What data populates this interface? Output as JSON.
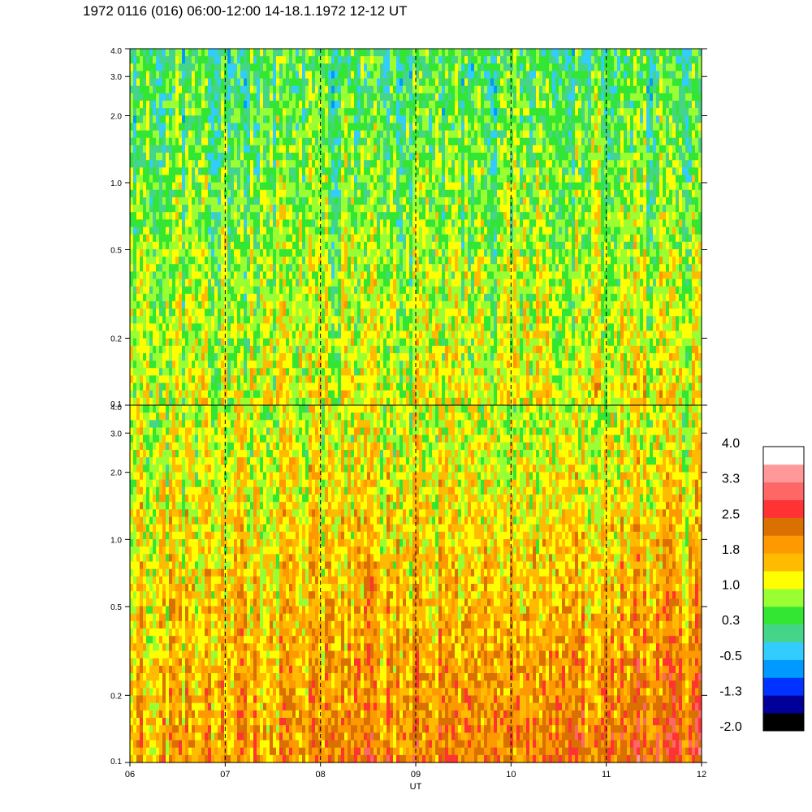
{
  "title": "1972 0116 (016) 06:00-12:00 14-18.1.1972  12-12 UT",
  "chart_data": [
    {
      "type": "heatmap",
      "panel": "upper",
      "x_ticks": [
        "06",
        "07",
        "08",
        "09",
        "10",
        "11",
        "12"
      ],
      "x_range": [
        6,
        12
      ],
      "y_scale": "log",
      "y_range": [
        0.1,
        4.0
      ],
      "y_ticks": [
        "0.1",
        "0.2",
        "0.5",
        "1.0",
        "2.0",
        "3.0",
        "4.0"
      ],
      "hour_markers": [
        7,
        8,
        9,
        10,
        11
      ],
      "dominant_levels": {
        "high_freq": 0.3,
        "low_freq": 1.0
      }
    },
    {
      "type": "heatmap",
      "panel": "lower",
      "x_ticks": [
        "06",
        "07",
        "08",
        "09",
        "10",
        "11",
        "12"
      ],
      "x_range": [
        6,
        12
      ],
      "xlabel": "UT",
      "y_scale": "log",
      "y_range": [
        0.1,
        4.0
      ],
      "y_ticks": [
        "0.1",
        "0.2",
        "0.5",
        "1.0",
        "2.0",
        "3.0",
        "4.0"
      ],
      "hour_markers": [
        7,
        8,
        9,
        10,
        11
      ],
      "dominant_levels": {
        "high_freq": 1.0,
        "low_freq": 1.8
      }
    }
  ],
  "colorbar": {
    "labels": [
      "4.0",
      "3.3",
      "2.5",
      "1.8",
      "1.0",
      "0.3",
      "-0.5",
      "-1.3",
      "-2.0"
    ],
    "colors": [
      "#000000",
      "#000099",
      "#0033ff",
      "#0099ff",
      "#33ccff",
      "#44d58a",
      "#33e633",
      "#99ff33",
      "#ffff00",
      "#ffbb00",
      "#ff9900",
      "#d97000",
      "#ff3333",
      "#ff6666",
      "#ff9999",
      "#ffffff"
    ]
  }
}
